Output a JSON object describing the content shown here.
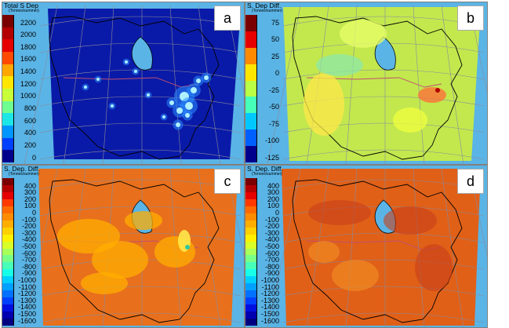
{
  "panels": [
    {
      "id": "a",
      "label": "a",
      "title": "Total S Dep",
      "unit": "(Tonnes/summer)",
      "colorbar_ticks": [
        "2200",
        "2000",
        "1800",
        "1600",
        "1400",
        "1200",
        "1000",
        "800",
        "600",
        "400",
        "200",
        "0"
      ],
      "colormap": [
        "#7a0000",
        "#b30000",
        "#e60000",
        "#ff4a00",
        "#ffa600",
        "#ffe600",
        "#c8ff38",
        "#6eff90",
        "#1ce6e6",
        "#0095ff",
        "#0040ff",
        "#00008c"
      ],
      "background": "#0a1aa8"
    },
    {
      "id": "b",
      "label": "b",
      "title": "S. Dep Diff.",
      "unit": "(Tonnes/summer)",
      "colorbar_ticks": [
        "75",
        "50",
        "25",
        "0",
        "-25",
        "-50",
        "-75",
        "-100",
        "-125"
      ],
      "colormap": [
        "#7a0000",
        "#e60000",
        "#ff8a00",
        "#ffe600",
        "#b8ff46",
        "#46ffb8",
        "#00c8ff",
        "#0060ff",
        "#00008c"
      ],
      "background": "#c2e84e"
    },
    {
      "id": "c",
      "label": "c",
      "title": "S. Dep. Diff.",
      "unit": "(Tonnes/summer)",
      "colorbar_ticks": [
        "400",
        "300",
        "200",
        "100",
        "0",
        "-100",
        "-200",
        "-300",
        "-400",
        "-500",
        "-600",
        "-700",
        "-800",
        "-900",
        "-1000",
        "-1100",
        "-1200",
        "-1300",
        "-1400",
        "-1500",
        "-1600"
      ],
      "colormap": [
        "#7a0000",
        "#b30000",
        "#e60000",
        "#ff3a00",
        "#ff6a00",
        "#ff8c00",
        "#ffae00",
        "#ffd000",
        "#fff000",
        "#d8ff28",
        "#a8ff58",
        "#78ff88",
        "#48ffb8",
        "#18ffe8",
        "#00d0ff",
        "#00a0ff",
        "#0070ff",
        "#0040ff",
        "#0010e0",
        "#0000b0",
        "#000080"
      ],
      "background": "#e8701c"
    },
    {
      "id": "d",
      "label": "d",
      "title": "S. Dep. Diff.",
      "unit": "(Tonnes/summer)",
      "colorbar_ticks": [
        "400",
        "300",
        "200",
        "100",
        "0",
        "-100",
        "-200",
        "-300",
        "-400",
        "-500",
        "-600",
        "-700",
        "-800",
        "-900",
        "-1000",
        "-1100",
        "-1200",
        "-1300",
        "-1400",
        "-1500",
        "-1600"
      ],
      "colormap": [
        "#7a0000",
        "#b30000",
        "#e60000",
        "#ff3a00",
        "#ff6a00",
        "#ff8c00",
        "#ffae00",
        "#ffd000",
        "#fff000",
        "#d8ff28",
        "#a8ff58",
        "#78ff88",
        "#48ffb8",
        "#18ffe8",
        "#00d0ff",
        "#00a0ff",
        "#0070ff",
        "#0040ff",
        "#0010e0",
        "#0000b0",
        "#000080"
      ],
      "background": "#e06018"
    }
  ],
  "colors": {
    "ocean": "#5ab4e6",
    "coastline": "#000000",
    "border": "#c05070",
    "grid": "#8a8a9a"
  }
}
